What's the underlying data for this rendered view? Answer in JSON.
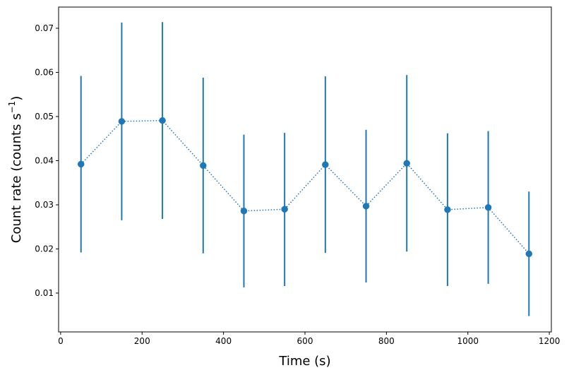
{
  "chart_data": {
    "type": "scatter",
    "title": "",
    "xlabel": "Time (s)",
    "ylabel_main": "Count rate (counts s",
    "ylabel_sup": "−1",
    "ylabel_close": ")",
    "xlim": [
      -5,
      1205
    ],
    "ylim": [
      0.0012,
      0.0748
    ],
    "xticks": [
      0,
      200,
      400,
      600,
      800,
      1000,
      1200
    ],
    "xtick_labels": [
      "0",
      "200",
      "400",
      "600",
      "800",
      "1000",
      "1200"
    ],
    "yticks": [
      0.01,
      0.02,
      0.03,
      0.04,
      0.05,
      0.06,
      0.07
    ],
    "ytick_labels": [
      "0.01",
      "0.02",
      "0.03",
      "0.04",
      "0.05",
      "0.06",
      "0.07"
    ],
    "grid": false,
    "line_style": "dotted",
    "color": "#1f77b4",
    "series": [
      {
        "x": [
          50,
          150,
          250,
          350,
          450,
          550,
          650,
          750,
          850,
          950,
          1050,
          1150
        ],
        "y": [
          0.0392,
          0.0489,
          0.0491,
          0.0389,
          0.0286,
          0.029,
          0.0391,
          0.0297,
          0.0394,
          0.0289,
          0.0294,
          0.0189
        ],
        "y_low": [
          0.0192,
          0.0265,
          0.0268,
          0.019,
          0.0113,
          0.0116,
          0.0191,
          0.0124,
          0.0194,
          0.0116,
          0.0121,
          0.0048
        ],
        "y_high": [
          0.0592,
          0.0713,
          0.0714,
          0.0588,
          0.0459,
          0.0463,
          0.0591,
          0.047,
          0.0594,
          0.0462,
          0.0467,
          0.033
        ]
      }
    ]
  }
}
